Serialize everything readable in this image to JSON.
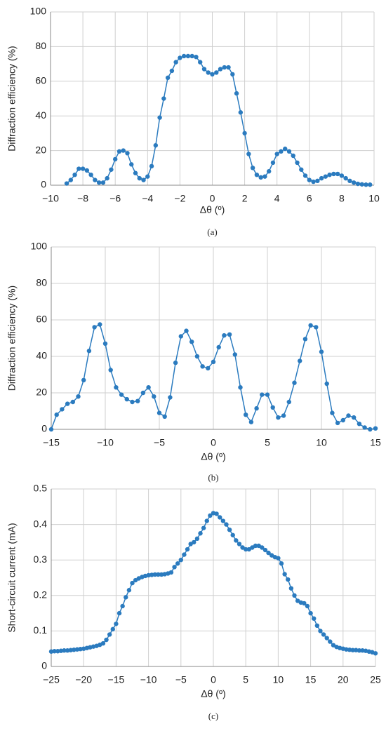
{
  "chart_data": [
    {
      "type": "line",
      "ylabel": "Diffraction efficiency (%)",
      "xlabel": "Δθ (º)",
      "caption": "(a)",
      "color": "#2b7bbf",
      "grid": true,
      "xlim": [
        -10,
        10
      ],
      "ylim": [
        0,
        100
      ],
      "xticks": [
        {
          "value": -10,
          "label": "−10"
        },
        {
          "value": -8,
          "label": "−8"
        },
        {
          "value": -6,
          "label": "−6"
        },
        {
          "value": -4,
          "label": "−4"
        },
        {
          "value": -2,
          "label": "−2"
        },
        0,
        2,
        4,
        6,
        8,
        10
      ],
      "yticks": [
        0,
        20,
        40,
        60,
        80,
        100
      ],
      "x": [
        -9,
        -8.75,
        -8.5,
        -8.25,
        -8,
        -7.75,
        -7.5,
        -7.25,
        -7,
        -6.75,
        -6.5,
        -6.25,
        -6,
        -5.75,
        -5.5,
        -5.25,
        -5,
        -4.75,
        -4.5,
        -4.25,
        -4,
        -3.75,
        -3.5,
        -3.25,
        -3,
        -2.75,
        -2.5,
        -2.25,
        -2,
        -1.75,
        -1.5,
        -1.25,
        -1,
        -0.75,
        -0.5,
        -0.25,
        0,
        0.25,
        0.5,
        0.75,
        1,
        1.25,
        1.5,
        1.75,
        2,
        2.25,
        2.5,
        2.75,
        3,
        3.25,
        3.5,
        3.75,
        4,
        4.25,
        4.5,
        4.75,
        5,
        5.25,
        5.5,
        5.75,
        6,
        6.25,
        6.5,
        6.75,
        7,
        7.25,
        7.5,
        7.75,
        8,
        8.25,
        8.5,
        8.75,
        9,
        9.25,
        9.5,
        9.75
      ],
      "values": [
        1,
        3,
        6,
        9.5,
        9.5,
        8.5,
        6,
        3,
        1.5,
        1.5,
        4,
        9,
        15,
        19.5,
        20,
        18.5,
        12,
        7,
        4,
        3,
        5,
        11,
        23,
        39,
        50,
        62,
        66,
        71,
        73.5,
        74.5,
        74.5,
        74.5,
        74,
        71,
        67,
        65,
        64,
        65,
        67,
        68,
        68,
        64,
        53,
        42,
        30,
        18,
        10,
        6,
        4.5,
        5,
        8,
        13,
        18,
        19.5,
        21,
        19.5,
        17,
        13,
        9,
        5.5,
        3,
        2,
        2.5,
        4,
        5,
        6,
        6.5,
        6.5,
        5.5,
        4,
        2.5,
        1.5,
        0.8,
        0.5,
        0.3,
        0.3
      ]
    },
    {
      "type": "line",
      "ylabel": "Diffraction efficiency (%)",
      "xlabel": "Δθ (º)",
      "caption": "(b)",
      "color": "#2b7bbf",
      "grid": true,
      "xlim": [
        -15,
        15
      ],
      "ylim": [
        0,
        100
      ],
      "xticks": [
        {
          "value": -15,
          "label": "−15"
        },
        {
          "value": -10,
          "label": "−10"
        },
        {
          "value": -5,
          "label": "−5"
        },
        0,
        5,
        10,
        15
      ],
      "yticks": [
        0,
        20,
        40,
        60,
        80,
        100
      ],
      "x": [
        -15,
        -14.5,
        -14,
        -13.5,
        -13,
        -12.5,
        -12,
        -11.5,
        -11,
        -10.5,
        -10,
        -9.5,
        -9,
        -8.5,
        -8,
        -7.5,
        -7,
        -6.5,
        -6,
        -5.5,
        -5,
        -4.5,
        -4,
        -3.5,
        -3,
        -2.5,
        -2,
        -1.5,
        -1,
        -0.5,
        0,
        0.5,
        1,
        1.5,
        2,
        2.5,
        3,
        3.5,
        4,
        4.5,
        5,
        5.5,
        6,
        6.5,
        7,
        7.5,
        8,
        8.5,
        9,
        9.5,
        10,
        10.5,
        11,
        11.5,
        12,
        12.5,
        13,
        13.5,
        14,
        14.5,
        15
      ],
      "values": [
        0,
        8,
        11,
        14,
        15,
        18,
        27,
        43,
        56,
        57.5,
        47,
        32.5,
        23,
        19,
        16.5,
        15,
        15.5,
        20,
        23,
        18,
        9,
        7,
        17.5,
        36.5,
        51,
        54,
        48,
        40,
        34.5,
        33.5,
        37,
        45,
        51.5,
        52,
        41,
        23,
        8,
        4,
        11.5,
        19,
        19,
        12,
        6.5,
        7.5,
        15,
        25.5,
        37.5,
        49.5,
        57,
        56,
        42.5,
        25,
        9,
        3.5,
        5,
        7.5,
        6.5,
        3,
        1,
        0,
        0.5
      ]
    },
    {
      "type": "line",
      "ylabel": "Short-circuit current (mA)",
      "xlabel": "Δθ (º)",
      "caption": "(c)",
      "color": "#2b7bbf",
      "grid": true,
      "xlim": [
        -25,
        25
      ],
      "ylim": [
        0,
        0.5
      ],
      "xticks": [
        {
          "value": -25,
          "label": "−25"
        },
        {
          "value": -20,
          "label": "−20"
        },
        {
          "value": -15,
          "label": "−15"
        },
        {
          "value": -10,
          "label": "−10"
        },
        {
          "value": -5,
          "label": "−5"
        },
        0,
        5,
        10,
        15,
        20,
        25
      ],
      "yticks": [
        0,
        0.1,
        0.2,
        0.3,
        0.4,
        0.5
      ],
      "x": [
        -25,
        -24.5,
        -24,
        -23.5,
        -23,
        -22.5,
        -22,
        -21.5,
        -21,
        -20.5,
        -20,
        -19.5,
        -19,
        -18.5,
        -18,
        -17.5,
        -17,
        -16.5,
        -16,
        -15.5,
        -15,
        -14.5,
        -14,
        -13.5,
        -13,
        -12.5,
        -12,
        -11.5,
        -11,
        -10.5,
        -10,
        -9.5,
        -9,
        -8.5,
        -8,
        -7.5,
        -7,
        -6.5,
        -6,
        -5.5,
        -5,
        -4.5,
        -4,
        -3.5,
        -3,
        -2.5,
        -2,
        -1.5,
        -1,
        -0.5,
        0,
        0.5,
        1,
        1.5,
        2,
        2.5,
        3,
        3.5,
        4,
        4.5,
        5,
        5.5,
        6,
        6.5,
        7,
        7.5,
        8,
        8.5,
        9,
        9.5,
        10,
        10.5,
        11,
        11.5,
        12,
        12.5,
        13,
        13.5,
        14,
        14.5,
        15,
        15.5,
        16,
        16.5,
        17,
        17.5,
        18,
        18.5,
        19,
        19.5,
        20,
        20.5,
        21,
        21.5,
        22,
        22.5,
        23,
        23.5,
        24,
        24.5,
        25
      ],
      "values": [
        0.042,
        0.043,
        0.043,
        0.044,
        0.045,
        0.045,
        0.046,
        0.047,
        0.048,
        0.049,
        0.05,
        0.052,
        0.054,
        0.056,
        0.058,
        0.061,
        0.065,
        0.075,
        0.09,
        0.105,
        0.12,
        0.15,
        0.17,
        0.195,
        0.215,
        0.235,
        0.243,
        0.248,
        0.252,
        0.255,
        0.257,
        0.258,
        0.259,
        0.259,
        0.259,
        0.26,
        0.262,
        0.265,
        0.28,
        0.29,
        0.3,
        0.315,
        0.33,
        0.345,
        0.35,
        0.36,
        0.375,
        0.39,
        0.41,
        0.425,
        0.432,
        0.43,
        0.42,
        0.41,
        0.4,
        0.385,
        0.37,
        0.355,
        0.345,
        0.335,
        0.33,
        0.33,
        0.335,
        0.34,
        0.34,
        0.335,
        0.328,
        0.32,
        0.313,
        0.308,
        0.305,
        0.29,
        0.26,
        0.245,
        0.22,
        0.2,
        0.185,
        0.18,
        0.178,
        0.17,
        0.15,
        0.135,
        0.115,
        0.1,
        0.09,
        0.08,
        0.07,
        0.06,
        0.055,
        0.052,
        0.05,
        0.048,
        0.047,
        0.046,
        0.046,
        0.045,
        0.045,
        0.044,
        0.042,
        0.04,
        0.037
      ]
    }
  ]
}
